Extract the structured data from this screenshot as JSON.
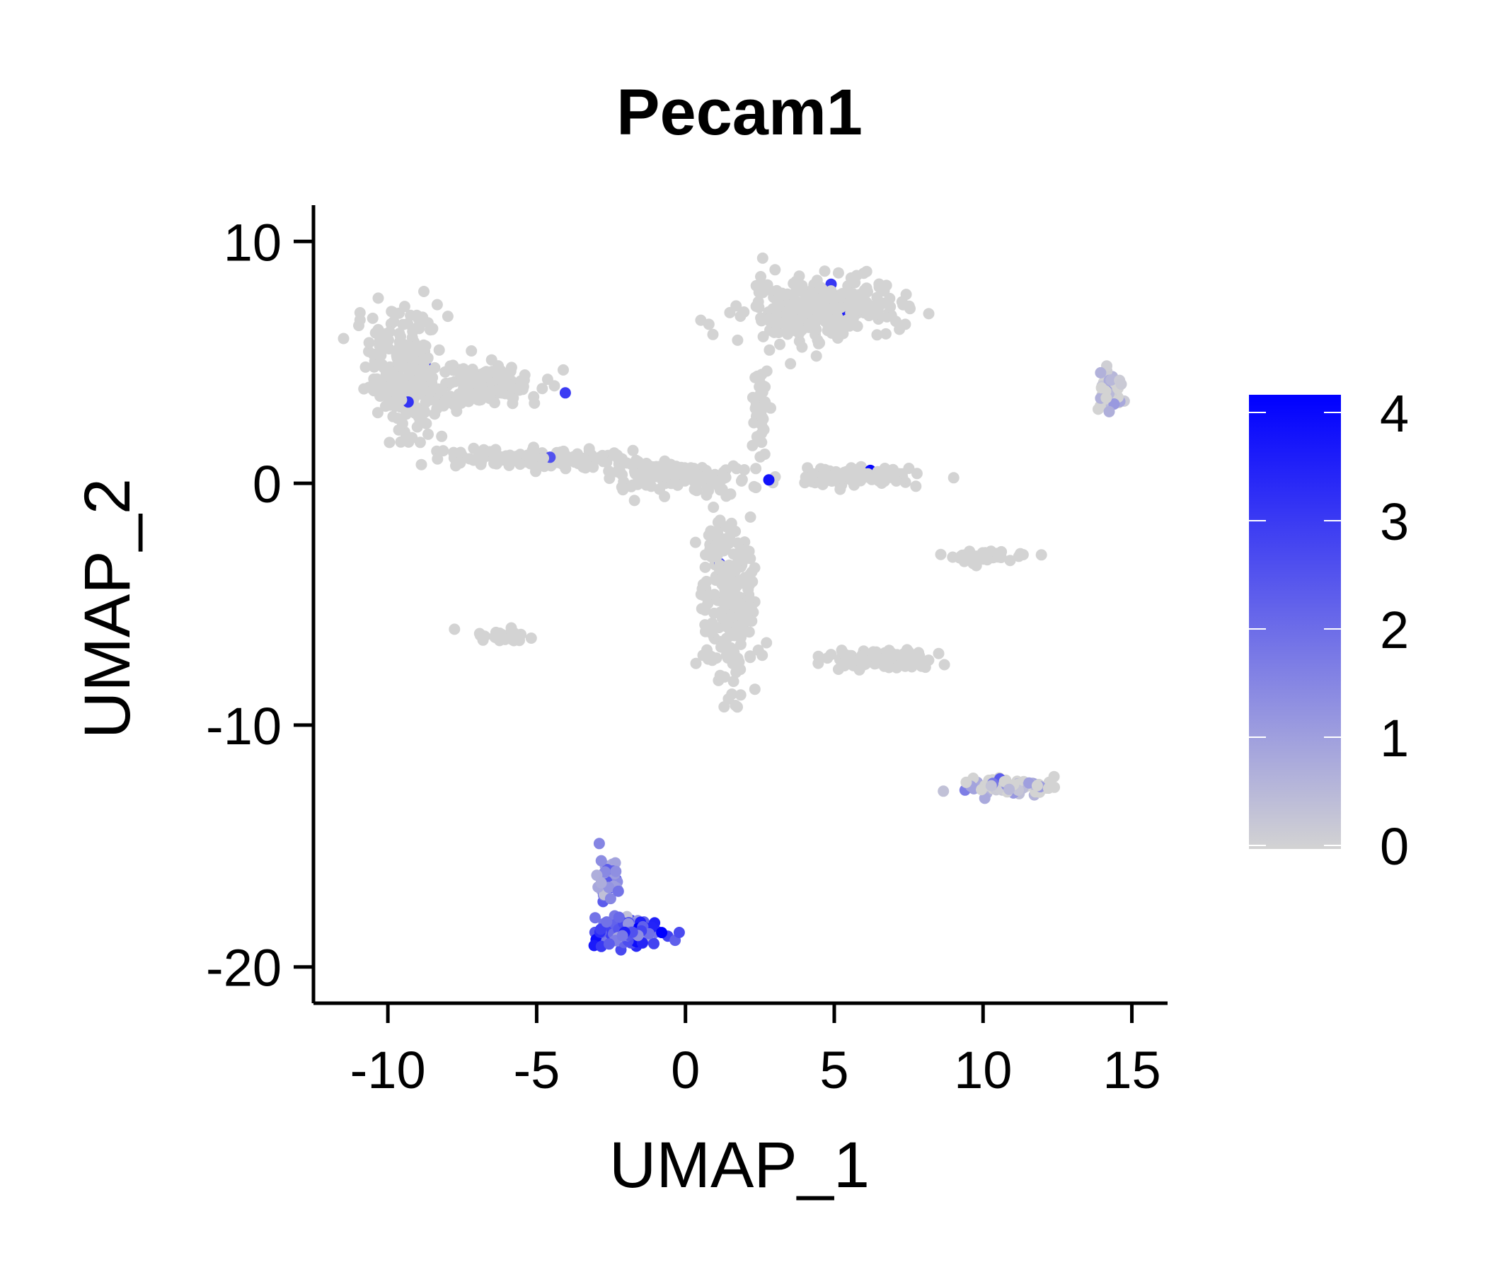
{
  "chart_data": {
    "type": "scatter",
    "title": "Pecam1",
    "xlabel": "UMAP_1",
    "ylabel": "UMAP_2",
    "xlim": [
      -12.5,
      16.2
    ],
    "ylim": [
      -21.5,
      11.5
    ],
    "xticks": [
      -10,
      -5,
      0,
      5,
      10,
      15
    ],
    "yticks": [
      -20,
      -10,
      0,
      10
    ],
    "grid": false,
    "legend": {
      "type": "colorbar",
      "placement": "right",
      "min": 0,
      "max": 4,
      "ticks": [
        0,
        1,
        2,
        3,
        4
      ],
      "low_color": "#d3d3d3",
      "high_color": "#0000ff"
    },
    "colors": {
      "background": "#ffffff",
      "point_base": "#d3d3d3",
      "point_high": "#0000ff"
    },
    "point_groups": [
      {
        "name": "upper-left mass",
        "center": [
          -9.4,
          4.6
        ],
        "spread": [
          1.2,
          2.4
        ],
        "count": 260,
        "expression": 0
      },
      {
        "name": "upper-left arm",
        "center": [
          -6.8,
          4.0
        ],
        "spread": [
          1.8,
          0.9
        ],
        "count": 150,
        "expression": 0
      },
      {
        "name": "horizontal bridge",
        "center": [
          -5.0,
          1.0
        ],
        "spread": [
          3.2,
          0.35
        ],
        "count": 140,
        "expression": 0
      },
      {
        "name": "central bridge",
        "center": [
          -0.3,
          0.3
        ],
        "spread": [
          2.5,
          0.6
        ],
        "count": 130,
        "expression": 0
      },
      {
        "name": "top-right mass",
        "center": [
          4.6,
          7.2
        ],
        "spread": [
          2.6,
          1.2
        ],
        "count": 300,
        "expression": 0
      },
      {
        "name": "top-right stem",
        "center": [
          2.5,
          3.2
        ],
        "spread": [
          0.3,
          1.6
        ],
        "count": 50,
        "expression": 0
      },
      {
        "name": "right arm",
        "center": [
          5.6,
          0.3
        ],
        "spread": [
          2.3,
          0.35
        ],
        "count": 100,
        "expression": 0
      },
      {
        "name": "central descending",
        "center": [
          1.5,
          -5.0
        ],
        "spread": [
          0.9,
          3.2
        ],
        "count": 220,
        "expression": 0
      },
      {
        "name": "lower-center arm",
        "center": [
          6.5,
          -7.2
        ],
        "spread": [
          1.6,
          0.45
        ],
        "count": 90,
        "expression": 0
      },
      {
        "name": "small left strip",
        "center": [
          -5.9,
          -6.3
        ],
        "spread": [
          1.1,
          0.25
        ],
        "count": 35,
        "expression": 0
      },
      {
        "name": "right strip",
        "center": [
          10.2,
          -3.0
        ],
        "spread": [
          1.4,
          0.3
        ],
        "count": 40,
        "expression": 0
      },
      {
        "name": "far-right cluster",
        "center": [
          14.2,
          3.8
        ],
        "spread": [
          0.5,
          0.8
        ],
        "count": 45,
        "expression": 0.1
      },
      {
        "name": "lower-right strip",
        "center": [
          10.9,
          -12.5
        ],
        "spread": [
          1.6,
          0.35
        ],
        "count": 70,
        "expression": 0.1
      },
      {
        "name": "bottom cluster stem",
        "center": [
          -2.6,
          -16.5
        ],
        "spread": [
          0.3,
          0.9
        ],
        "count": 40,
        "expression": 1.2
      },
      {
        "name": "bottom cluster",
        "center": [
          -2.0,
          -18.6
        ],
        "spread": [
          1.0,
          0.6
        ],
        "count": 170,
        "expression": 2.4
      }
    ]
  }
}
